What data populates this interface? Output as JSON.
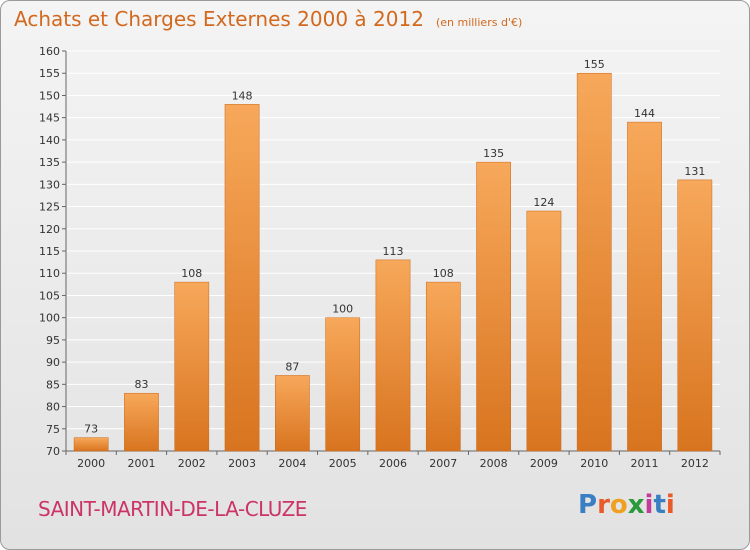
{
  "title": "Achats et Charges Externes 2000 à 2012",
  "unit": "(en milliers d'€)",
  "place": "SAINT-MARTIN-DE-LA-CLUZE",
  "logo": {
    "letters": [
      "P",
      "r",
      "o",
      "x",
      "i",
      "t",
      "i"
    ],
    "colors": [
      "#3a7fc4",
      "#e85a2a",
      "#f0a020",
      "#2a9a3a",
      "#c43a9a",
      "#3a7fc4",
      "#e85a2a"
    ]
  },
  "colors": {
    "bar_light": "#f7a85a",
    "bar_dark": "#d8741f",
    "axis": "#666666",
    "grid": "#ffffff"
  },
  "chart_data": {
    "type": "bar",
    "categories": [
      "2000",
      "2001",
      "2002",
      "2003",
      "2004",
      "2005",
      "2006",
      "2007",
      "2008",
      "2009",
      "2010",
      "2011",
      "2012"
    ],
    "values": [
      73,
      83,
      108,
      148,
      87,
      100,
      113,
      108,
      135,
      124,
      155,
      144,
      131
    ],
    "title": "Achats et Charges Externes 2000 à 2012",
    "ylim": [
      70,
      160
    ],
    "yticks": [
      70,
      75,
      80,
      85,
      90,
      95,
      100,
      105,
      110,
      115,
      120,
      125,
      130,
      135,
      140,
      145,
      150,
      155,
      160
    ],
    "grid": true,
    "legend": "none"
  }
}
